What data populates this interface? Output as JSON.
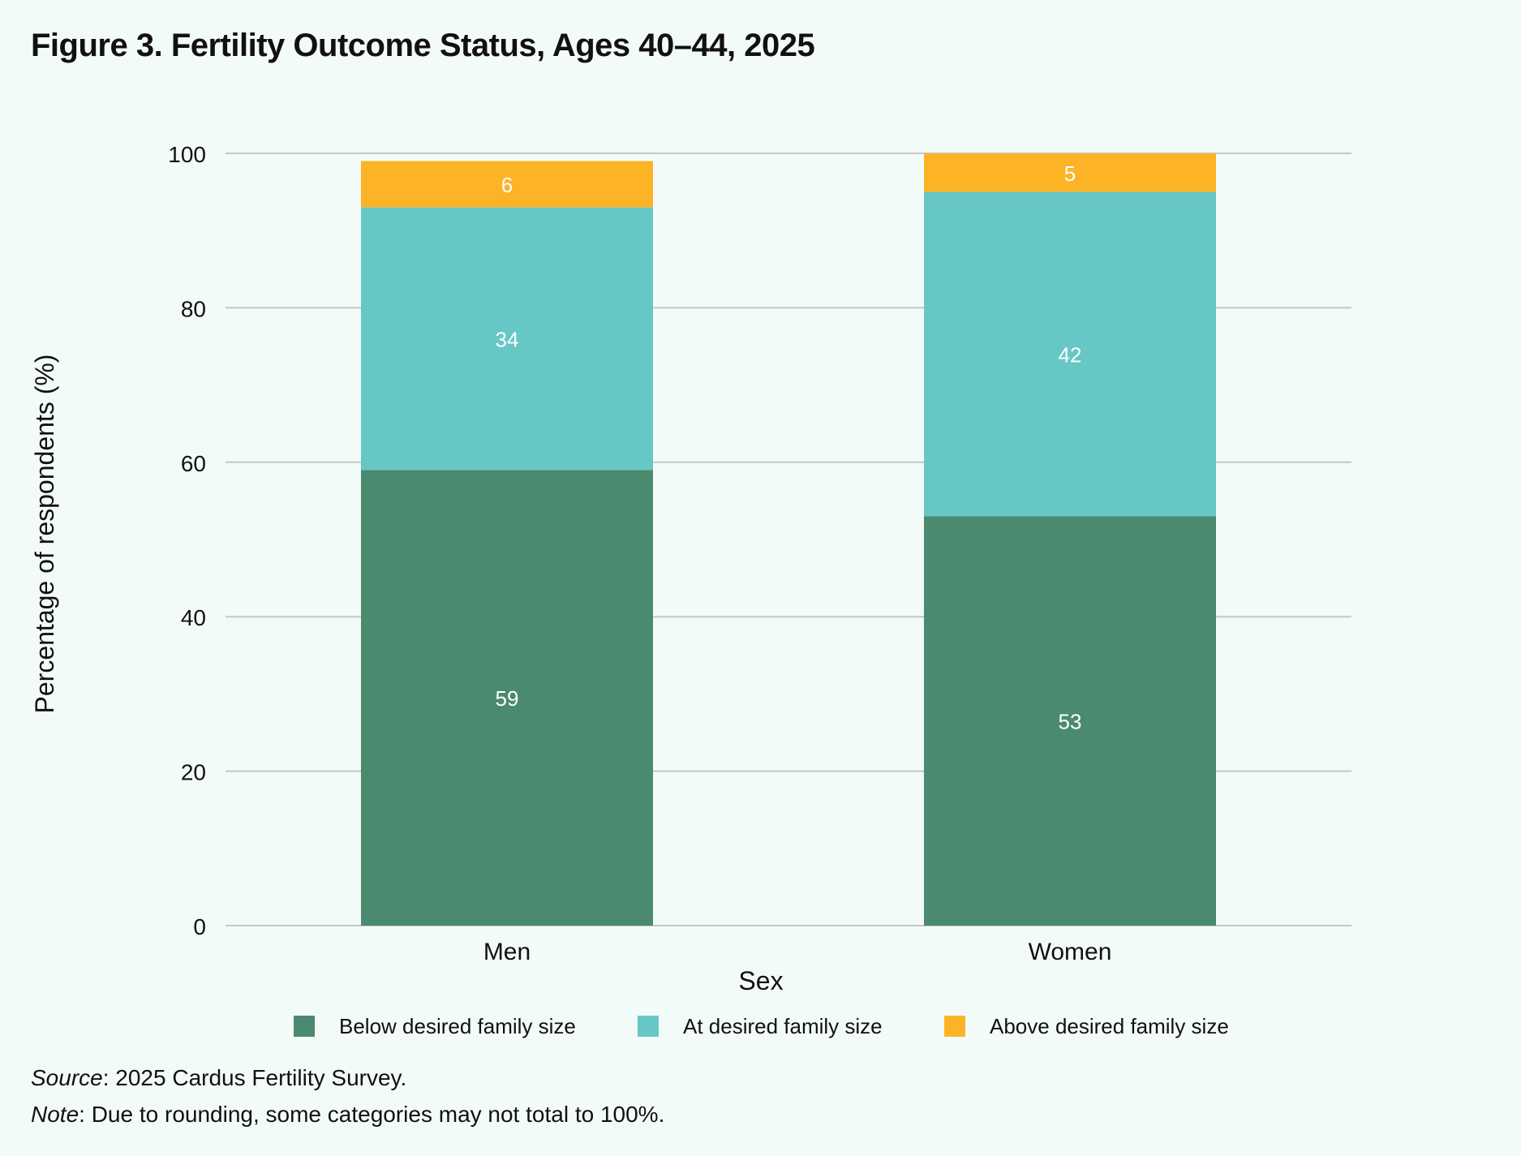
{
  "title": "Figure 3. Fertility Outcome Status, Ages 40–44, 2025",
  "chart_data": {
    "type": "bar",
    "stacked": true,
    "categories": [
      "Men",
      "Women"
    ],
    "series": [
      {
        "name": "Below desired family size",
        "values": [
          59,
          53
        ],
        "color": "#4a8a6f"
      },
      {
        "name": "At desired family size",
        "values": [
          34,
          42
        ],
        "color": "#67c7c5"
      },
      {
        "name": "Above desired family size",
        "values": [
          6,
          5
        ],
        "color": "#fcb426"
      }
    ],
    "data_labels": [
      [
        "59",
        "53"
      ],
      [
        "34",
        "42"
      ],
      [
        "6",
        "5"
      ]
    ],
    "xlabel": "Sex",
    "ylabel": "Percentage of respondents (%)",
    "ylim": [
      0,
      100
    ],
    "yticks": [
      0,
      20,
      40,
      60,
      80,
      100
    ],
    "grid": true,
    "legend": "bottom"
  },
  "notes": {
    "source_label": "Source",
    "source_text": ": 2025 Cardus Fertility Survey.",
    "note_label": "Note",
    "note_text": ": Due to rounding, some categories may not total to 100%."
  }
}
